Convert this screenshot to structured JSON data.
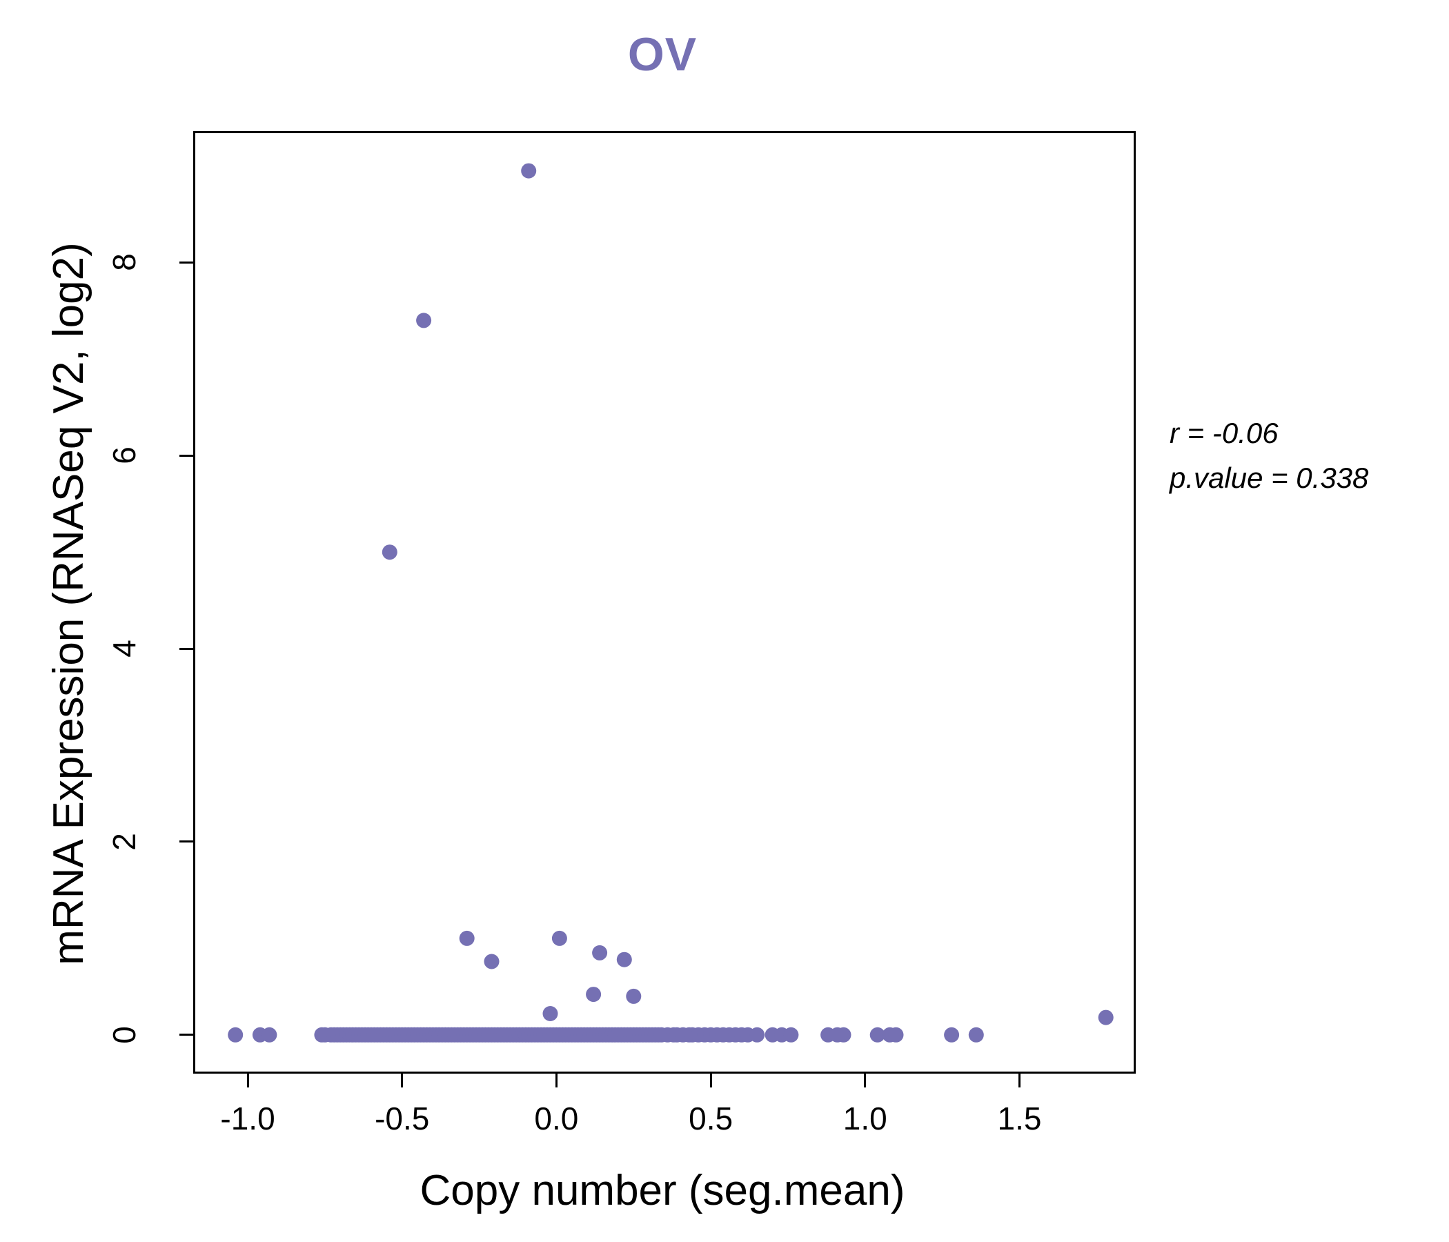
{
  "title": "OV",
  "annotation": {
    "line1": "r = -0.06",
    "line2": "p.value = 0.338"
  },
  "chart_data": {
    "type": "scatter",
    "title": "OV",
    "xlabel": "Copy number (seg.mean)",
    "ylabel": "mRNA Expression (RNASeq V2, log2)",
    "point_color": "#7570b3",
    "title_color": "#7570b3",
    "grid": false,
    "x_domain": [
      -1.17,
      1.87
    ],
    "y_domain": [
      -0.38,
      9.34
    ],
    "x_ticks": [
      {
        "value": -1.0,
        "label": "-1.0"
      },
      {
        "value": -0.5,
        "label": "-0.5"
      },
      {
        "value": 0.0,
        "label": "0.0"
      },
      {
        "value": 0.5,
        "label": "0.5"
      },
      {
        "value": 1.0,
        "label": "1.0"
      },
      {
        "value": 1.5,
        "label": "1.5"
      }
    ],
    "y_ticks": [
      {
        "value": 0,
        "label": "0"
      },
      {
        "value": 2,
        "label": "2"
      },
      {
        "value": 4,
        "label": "4"
      },
      {
        "value": 6,
        "label": "6"
      },
      {
        "value": 8,
        "label": "8"
      }
    ],
    "stats": {
      "r": -0.06,
      "p_value": 0.338
    },
    "points_elevated": [
      [
        -0.09,
        8.95
      ],
      [
        -0.43,
        7.4
      ],
      [
        -0.54,
        5.0
      ],
      [
        -0.29,
        1.0
      ],
      [
        0.01,
        1.0
      ],
      [
        0.14,
        0.85
      ],
      [
        0.22,
        0.78
      ],
      [
        -0.21,
        0.76
      ],
      [
        0.12,
        0.42
      ],
      [
        0.25,
        0.4
      ],
      [
        -0.02,
        0.22
      ],
      [
        1.78,
        0.18
      ]
    ],
    "points_baseline_y": 0,
    "points_baseline_x": [
      -1.04,
      -0.96,
      -0.93,
      -0.76,
      -0.75,
      -0.73,
      -0.72,
      -0.71,
      -0.7,
      -0.69,
      -0.68,
      -0.67,
      -0.66,
      -0.65,
      -0.64,
      -0.63,
      -0.62,
      -0.61,
      -0.6,
      -0.59,
      -0.58,
      -0.57,
      -0.56,
      -0.55,
      -0.54,
      -0.53,
      -0.52,
      -0.51,
      -0.5,
      -0.49,
      -0.48,
      -0.47,
      -0.46,
      -0.45,
      -0.44,
      -0.43,
      -0.42,
      -0.41,
      -0.4,
      -0.39,
      -0.38,
      -0.37,
      -0.36,
      -0.35,
      -0.34,
      -0.33,
      -0.32,
      -0.31,
      -0.3,
      -0.29,
      -0.28,
      -0.27,
      -0.26,
      -0.25,
      -0.24,
      -0.23,
      -0.22,
      -0.21,
      -0.2,
      -0.19,
      -0.18,
      -0.17,
      -0.16,
      -0.15,
      -0.14,
      -0.13,
      -0.12,
      -0.11,
      -0.1,
      -0.09,
      -0.08,
      -0.07,
      -0.06,
      -0.05,
      -0.04,
      -0.03,
      -0.02,
      -0.01,
      0.0,
      0.01,
      0.02,
      0.03,
      0.04,
      0.05,
      0.06,
      0.07,
      0.08,
      0.09,
      0.1,
      0.11,
      0.12,
      0.13,
      0.14,
      0.15,
      0.16,
      0.17,
      0.18,
      0.19,
      0.2,
      0.21,
      0.22,
      0.23,
      0.24,
      0.25,
      0.26,
      0.27,
      0.28,
      0.29,
      0.3,
      0.31,
      0.32,
      0.33,
      0.34,
      0.36,
      0.38,
      0.39,
      0.41,
      0.43,
      0.44,
      0.46,
      0.48,
      0.5,
      0.52,
      0.54,
      0.56,
      0.58,
      0.6,
      0.62,
      0.65,
      0.7,
      0.73,
      0.76,
      0.88,
      0.91,
      0.93,
      1.04,
      1.08,
      1.1,
      1.28,
      1.36
    ]
  }
}
